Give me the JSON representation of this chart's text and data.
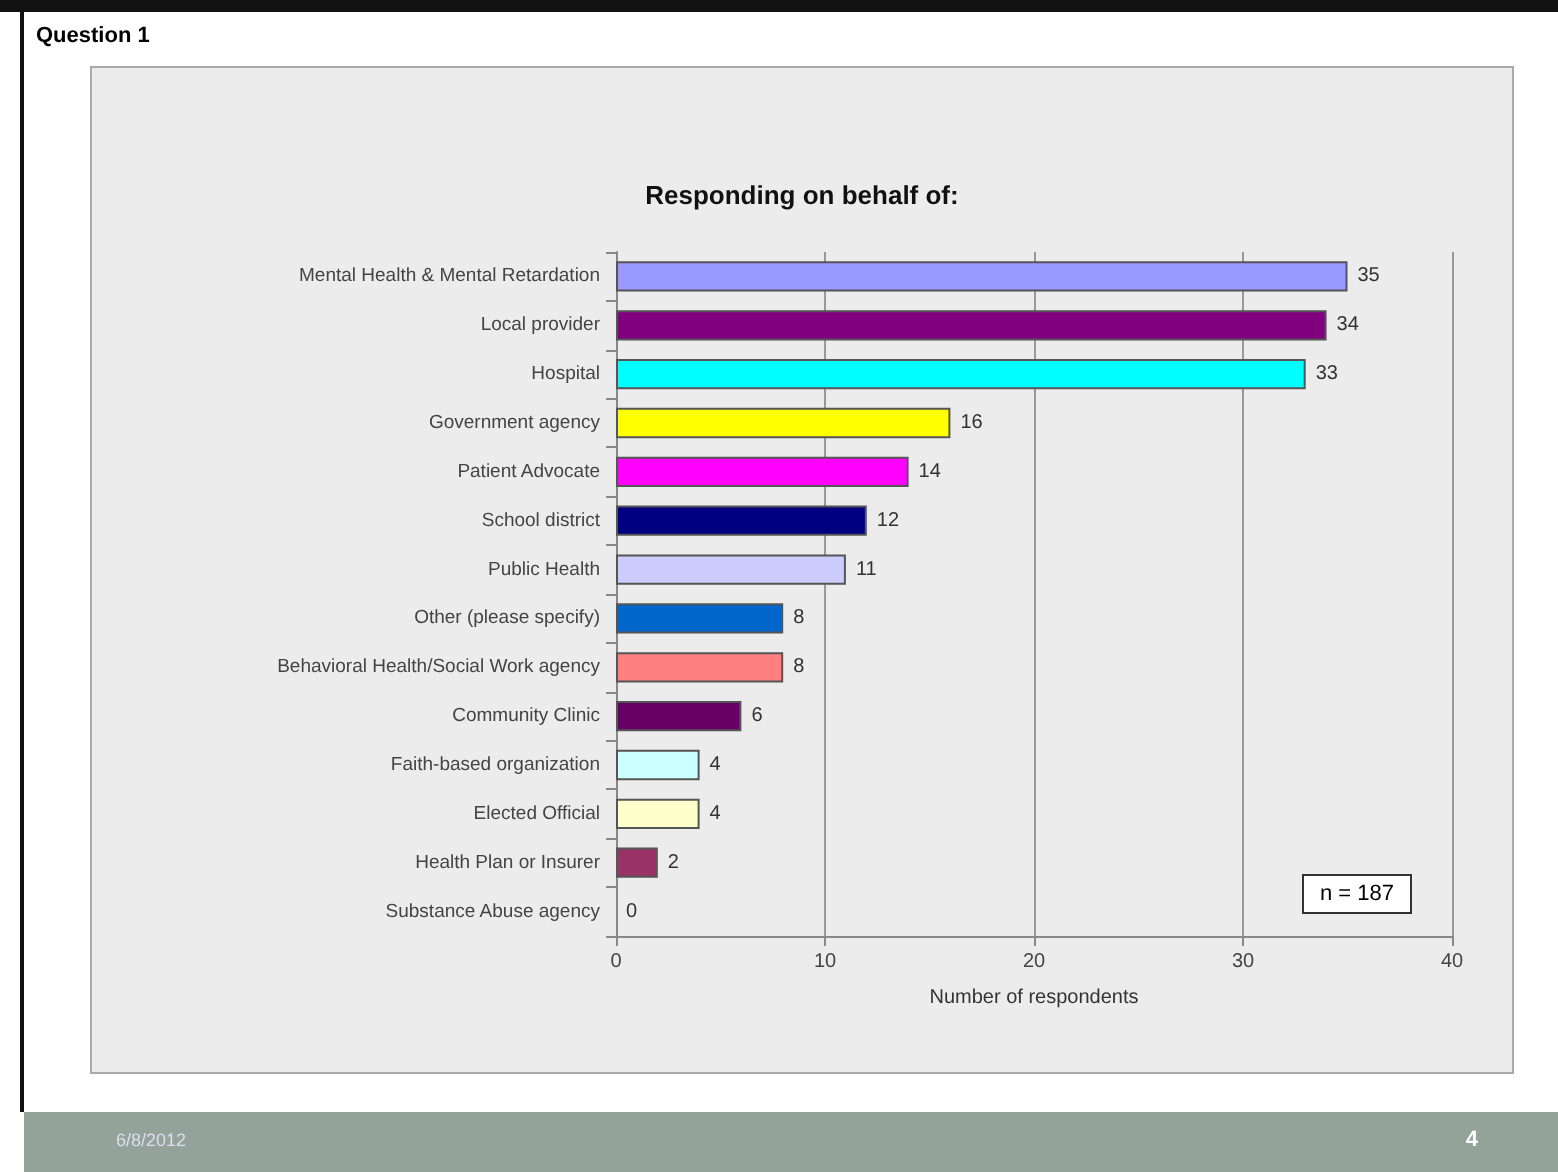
{
  "chart_data": {
    "type": "bar",
    "orientation": "horizontal",
    "title": "Responding on behalf of:",
    "xlabel": "Number of respondents",
    "categories": [
      "Mental Health & Mental Retardation",
      "Local provider",
      "Hospital",
      "Government agency",
      "Patient Advocate",
      "School district",
      "Public Health",
      "Other (please specify)",
      "Behavioral Health/Social Work agency",
      "Community Clinic",
      "Faith-based organization",
      "Elected Official",
      "Health Plan or Insurer",
      "Substance Abuse agency"
    ],
    "values": [
      35,
      34,
      33,
      16,
      14,
      12,
      11,
      8,
      8,
      6,
      4,
      4,
      2,
      0
    ],
    "colors": [
      "#9999ff",
      "#800080",
      "#00ffff",
      "#ffff00",
      "#ff00ff",
      "#000080",
      "#ccccff",
      "#0066cc",
      "#ff8080",
      "#660066",
      "#ccffff",
      "#ffffcc",
      "#993366",
      null
    ],
    "xlim": [
      0,
      40
    ],
    "xticks": [
      0,
      10,
      20,
      30,
      40
    ],
    "grid": "x",
    "data_labels": true,
    "annotations": [
      "Question 1",
      "n = 187",
      "6/8/2012",
      "4"
    ]
  }
}
